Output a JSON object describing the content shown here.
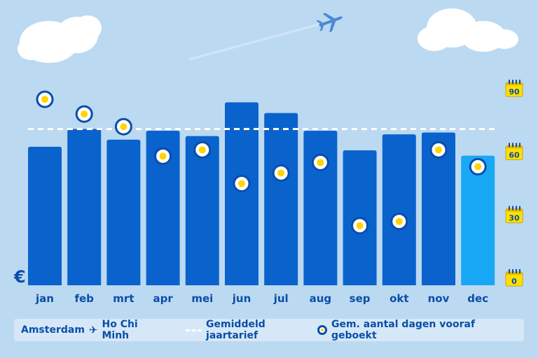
{
  "colors": {
    "background": "#bcd9f2",
    "bar": "#0a63cc",
    "bar_highlight": "#19a8f5",
    "marker_ring": "#0a4ea8",
    "marker_fill": "#ffd400",
    "avg_line": "#ffffff",
    "calendar": "#ffe000"
  },
  "currency_symbol": "€",
  "legend": {
    "route_from": "Amsterdam",
    "route_icon": "airplane-icon",
    "route_to": "Ho Chi Minh",
    "avg_label": "Gemiddeld jaartarief",
    "days_label": "Gem. aantal dagen vooraf geboekt"
  },
  "chart_data": {
    "type": "bar",
    "categories": [
      "jan",
      "feb",
      "mrt",
      "apr",
      "mei",
      "jun",
      "jul",
      "aug",
      "sep",
      "okt",
      "nov",
      "dec"
    ],
    "series": [
      {
        "values": [
          78,
          88,
          82,
          87,
          84,
          103,
          97,
          87,
          76,
          85,
          86,
          73
        ]
      },
      {
        "values": [
          85,
          78,
          72,
          58,
          61,
          45,
          50,
          55,
          25,
          27,
          61,
          53
        ]
      }
    ],
    "average_fare": 88,
    "highlight_category": "dec",
    "fare_axis": {
      "symbol": "€",
      "tick_labels": false
    },
    "days_axis": {
      "position": "right",
      "ticks": [
        0,
        30,
        60,
        90
      ],
      "ylim": [
        0,
        90
      ]
    },
    "grid": false,
    "legend_position": "bottom"
  }
}
